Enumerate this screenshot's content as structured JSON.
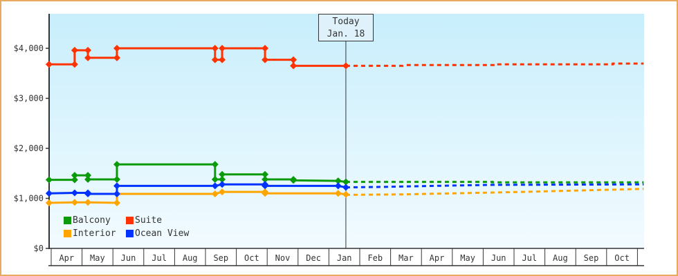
{
  "chart_data": {
    "type": "line",
    "title": "",
    "xlabel": "",
    "ylabel": "",
    "ylim": [
      0,
      4700
    ],
    "yticks": [
      "$0",
      "$1,000",
      "$2,000",
      "$3,000",
      "$4,000"
    ],
    "ytick_values": [
      0,
      1000,
      2000,
      3000,
      4000
    ],
    "x_unit": "months since start of Apr (past year)",
    "xlim": [
      -0.07,
      19.2
    ],
    "months": [
      "Apr",
      "May",
      "Jun",
      "Jul",
      "Aug",
      "Sep",
      "Oct",
      "Nov",
      "Dec",
      "Jan",
      "Feb",
      "Mar",
      "Apr",
      "May",
      "Jun",
      "Jul",
      "Aug",
      "Sep",
      "Oct"
    ],
    "today": {
      "label": "Today",
      "date": "Jan. 18",
      "x": 9.55
    },
    "legend_placement": "bottom-left",
    "series": [
      {
        "name": "Balcony",
        "color": "#0a9a0a",
        "values": [
          [
            -0.07,
            1370
          ],
          [
            0.76,
            1370
          ],
          [
            0.76,
            1460
          ],
          [
            1.19,
            1460
          ],
          [
            1.19,
            1380
          ],
          [
            2.13,
            1380
          ],
          [
            2.13,
            1680
          ],
          [
            5.31,
            1680
          ],
          [
            5.31,
            1380
          ],
          [
            5.54,
            1380
          ],
          [
            5.54,
            1480
          ],
          [
            6.93,
            1480
          ],
          [
            6.93,
            1380
          ],
          [
            7.85,
            1380
          ],
          [
            7.85,
            1360
          ],
          [
            9.3,
            1350
          ],
          [
            9.55,
            1330
          ]
        ],
        "forecast": [
          [
            9.55,
            1330
          ],
          [
            14.3,
            1330
          ],
          [
            14.3,
            1320
          ],
          [
            19.2,
            1320
          ]
        ]
      },
      {
        "name": "Suite",
        "color": "#ff3300",
        "values": [
          [
            -0.07,
            3680
          ],
          [
            0.76,
            3680
          ],
          [
            0.76,
            3960
          ],
          [
            1.19,
            3960
          ],
          [
            1.19,
            3810
          ],
          [
            2.13,
            3810
          ],
          [
            2.13,
            4000
          ],
          [
            5.31,
            4000
          ],
          [
            5.31,
            3770
          ],
          [
            5.54,
            3770
          ],
          [
            5.54,
            4000
          ],
          [
            6.93,
            4000
          ],
          [
            6.93,
            3770
          ],
          [
            7.85,
            3770
          ],
          [
            7.85,
            3650
          ],
          [
            9.55,
            3650
          ]
        ],
        "forecast": [
          [
            9.55,
            3650
          ],
          [
            11.4,
            3650
          ],
          [
            11.5,
            3665
          ],
          [
            14.4,
            3665
          ],
          [
            14.4,
            3680
          ],
          [
            18.2,
            3680
          ],
          [
            18.2,
            3695
          ],
          [
            19.2,
            3695
          ]
        ]
      },
      {
        "name": "Interior",
        "color": "#ffa500",
        "values": [
          [
            -0.07,
            910
          ],
          [
            0.76,
            920
          ],
          [
            1.19,
            920
          ],
          [
            2.13,
            910
          ],
          [
            2.13,
            1090
          ],
          [
            5.31,
            1090
          ],
          [
            5.54,
            1130
          ],
          [
            6.93,
            1130
          ],
          [
            6.93,
            1100
          ],
          [
            9.3,
            1100
          ],
          [
            9.55,
            1080
          ]
        ],
        "forecast": [
          [
            9.55,
            1070
          ],
          [
            11.4,
            1080
          ],
          [
            13.0,
            1100
          ],
          [
            15.3,
            1130
          ],
          [
            16.6,
            1150
          ],
          [
            19.2,
            1190
          ]
        ]
      },
      {
        "name": "Ocean View",
        "color": "#0033ff",
        "values": [
          [
            -0.07,
            1100
          ],
          [
            0.76,
            1110
          ],
          [
            1.19,
            1110
          ],
          [
            1.19,
            1090
          ],
          [
            2.13,
            1090
          ],
          [
            2.13,
            1250
          ],
          [
            5.31,
            1250
          ],
          [
            5.54,
            1280
          ],
          [
            6.93,
            1280
          ],
          [
            6.93,
            1250
          ],
          [
            9.3,
            1250
          ],
          [
            9.55,
            1220
          ]
        ],
        "forecast": [
          [
            9.55,
            1220
          ],
          [
            10.8,
            1230
          ],
          [
            12.4,
            1250
          ],
          [
            14.3,
            1270
          ],
          [
            19.2,
            1280
          ]
        ]
      }
    ]
  }
}
